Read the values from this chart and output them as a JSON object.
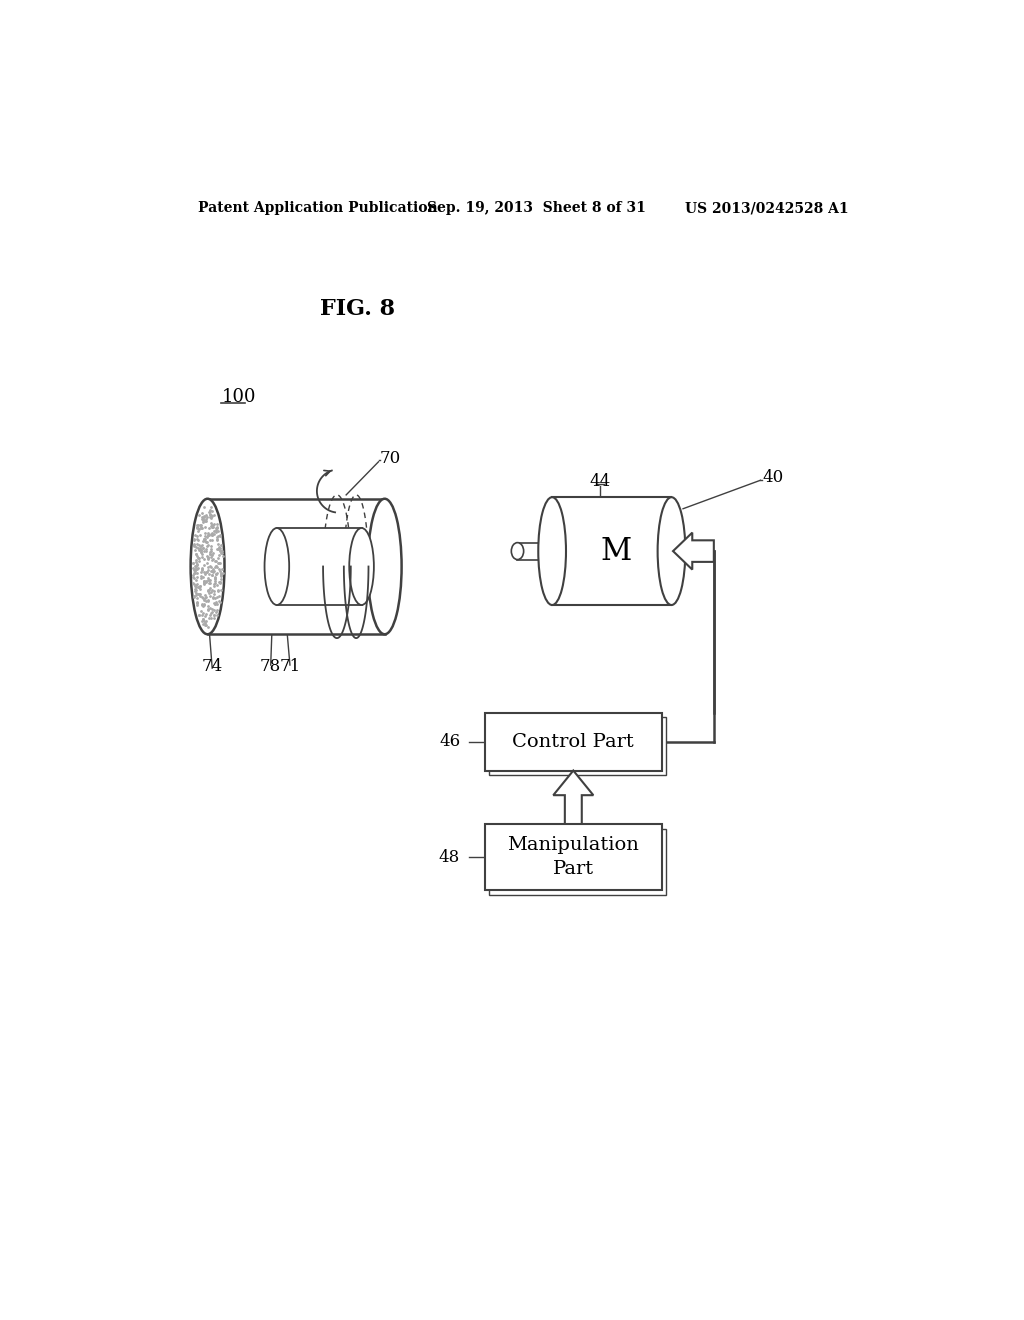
{
  "bg_color": "#ffffff",
  "header_left": "Patent Application Publication",
  "header_mid": "Sep. 19, 2013  Sheet 8 of 31",
  "header_right": "US 2013/0242528 A1",
  "fig_label": "FIG. 8",
  "label_100": "100",
  "label_70": "70",
  "label_74": "74",
  "label_78": "78",
  "label_71": "71",
  "label_44": "44",
  "label_40": "40",
  "label_46": "46",
  "label_48": "48",
  "label_M": "M",
  "control_part": "Control Part",
  "manip_part": "Manipulation\nPart",
  "line_color": "#404040",
  "text_color": "#000000",
  "dot_color": "#aaaaaa"
}
